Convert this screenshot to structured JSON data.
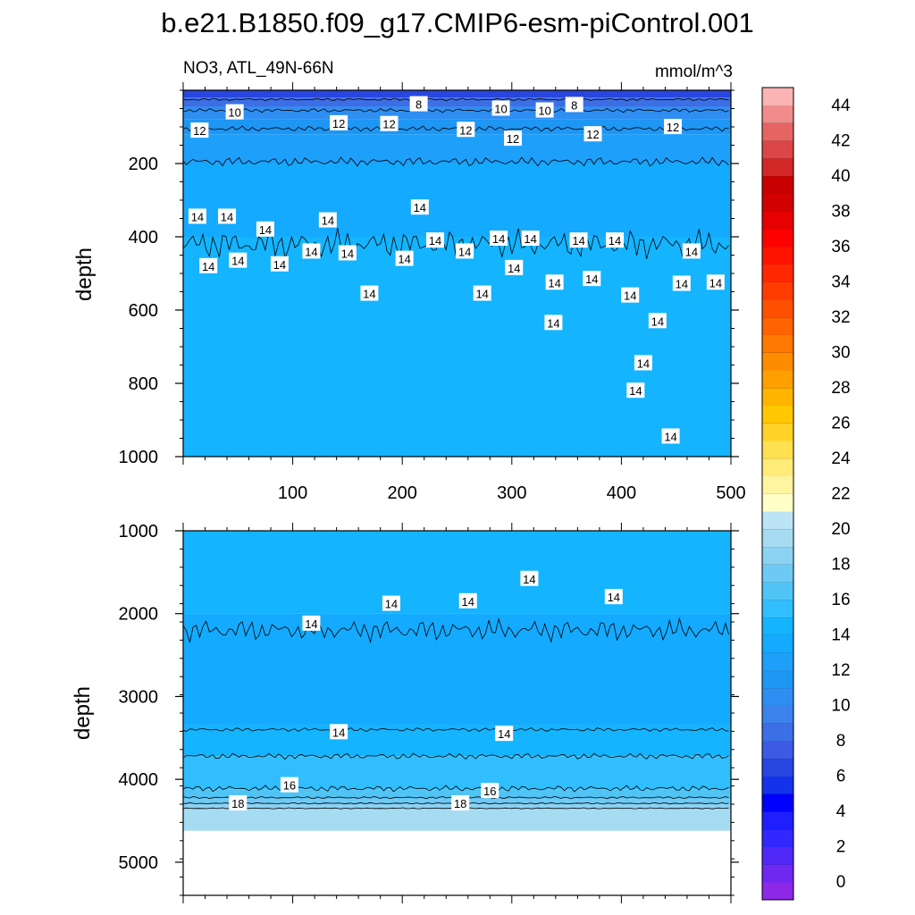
{
  "chart_data": {
    "type": "heatmap",
    "title": "b.e21.B1850.f09_g17.CMIP6-esm-piControl.001",
    "left_string": "NO3, ATL_49N-66N",
    "right_string": "mmol/m^3",
    "x": {
      "ticks": [
        100,
        200,
        300,
        400,
        500
      ],
      "range": [
        0,
        500
      ]
    },
    "panels": [
      {
        "id": "upper",
        "ylabel": "depth",
        "ylim": [
          0,
          1000
        ],
        "yticks": [
          200,
          400,
          600,
          800,
          1000
        ],
        "fill_bands": [
          {
            "from": 0,
            "to": 20,
            "value": 6
          },
          {
            "from": 20,
            "to": 45,
            "value": 8
          },
          {
            "from": 45,
            "to": 80,
            "value": 10
          },
          {
            "from": 80,
            "to": 120,
            "value": 11
          },
          {
            "from": 120,
            "to": 200,
            "value": 12
          },
          {
            "from": 200,
            "to": 400,
            "value": 13
          },
          {
            "from": 400,
            "to": 1000,
            "value": 14
          }
        ],
        "contours": [
          {
            "level": 8,
            "base_depth": 25,
            "amp": 4
          },
          {
            "level": 10,
            "base_depth": 55,
            "amp": 6
          },
          {
            "level": 12,
            "base_depth": 105,
            "amp": 8
          },
          {
            "level": 13,
            "base_depth": 195,
            "amp": 14
          },
          {
            "level": 14,
            "base_depth": 420,
            "amp": 45
          }
        ],
        "labels": [
          {
            "text": "10",
            "x": 47,
            "y": 60
          },
          {
            "text": "8",
            "x": 215,
            "y": 38
          },
          {
            "text": "10",
            "x": 290,
            "y": 50
          },
          {
            "text": "10",
            "x": 330,
            "y": 55
          },
          {
            "text": "8",
            "x": 357,
            "y": 40
          },
          {
            "text": "12",
            "x": 15,
            "y": 110
          },
          {
            "text": "12",
            "x": 142,
            "y": 90
          },
          {
            "text": "12",
            "x": 188,
            "y": 92
          },
          {
            "text": "12",
            "x": 258,
            "y": 108
          },
          {
            "text": "12",
            "x": 301,
            "y": 132
          },
          {
            "text": "12",
            "x": 374,
            "y": 120
          },
          {
            "text": "12",
            "x": 447,
            "y": 100
          },
          {
            "text": "14",
            "x": 13,
            "y": 345
          },
          {
            "text": "14",
            "x": 40,
            "y": 345
          },
          {
            "text": "14",
            "x": 75,
            "y": 380
          },
          {
            "text": "14",
            "x": 132,
            "y": 355
          },
          {
            "text": "14",
            "x": 216,
            "y": 320
          },
          {
            "text": "14",
            "x": 23,
            "y": 480
          },
          {
            "text": "14",
            "x": 50,
            "y": 465
          },
          {
            "text": "14",
            "x": 88,
            "y": 475
          },
          {
            "text": "14",
            "x": 117,
            "y": 440
          },
          {
            "text": "14",
            "x": 150,
            "y": 445
          },
          {
            "text": "14",
            "x": 170,
            "y": 555
          },
          {
            "text": "14",
            "x": 202,
            "y": 460
          },
          {
            "text": "14",
            "x": 230,
            "y": 410
          },
          {
            "text": "14",
            "x": 257,
            "y": 440
          },
          {
            "text": "14",
            "x": 288,
            "y": 405
          },
          {
            "text": "14",
            "x": 317,
            "y": 405
          },
          {
            "text": "14",
            "x": 302,
            "y": 485
          },
          {
            "text": "14",
            "x": 273,
            "y": 555
          },
          {
            "text": "14",
            "x": 339,
            "y": 525
          },
          {
            "text": "14",
            "x": 361,
            "y": 410
          },
          {
            "text": "14",
            "x": 394,
            "y": 410
          },
          {
            "text": "14",
            "x": 373,
            "y": 515
          },
          {
            "text": "14",
            "x": 338,
            "y": 635
          },
          {
            "text": "14",
            "x": 408,
            "y": 560
          },
          {
            "text": "14",
            "x": 433,
            "y": 630
          },
          {
            "text": "14",
            "x": 420,
            "y": 745
          },
          {
            "text": "14",
            "x": 413,
            "y": 820
          },
          {
            "text": "14",
            "x": 464,
            "y": 440
          },
          {
            "text": "14",
            "x": 455,
            "y": 528
          },
          {
            "text": "14",
            "x": 486,
            "y": 525
          },
          {
            "text": "14",
            "x": 445,
            "y": 945
          }
        ]
      },
      {
        "id": "lower",
        "ylabel": "depth",
        "ylim": [
          1000,
          5400
        ],
        "yticks": [
          1000,
          2000,
          3000,
          4000,
          5000
        ],
        "bottom_depth": 4620,
        "fill_bands": [
          {
            "from": 1000,
            "to": 2000,
            "value": 14
          },
          {
            "from": 2000,
            "to": 3350,
            "value": 13
          },
          {
            "from": 3350,
            "to": 3720,
            "value": 14
          },
          {
            "from": 3720,
            "to": 4120,
            "value": 15
          },
          {
            "from": 4120,
            "to": 4230,
            "value": 16
          },
          {
            "from": 4230,
            "to": 4300,
            "value": 17
          },
          {
            "from": 4300,
            "to": 4360,
            "value": 18
          },
          {
            "from": 4360,
            "to": 4620,
            "value": 19
          }
        ],
        "contours": [
          {
            "level": 14,
            "base_depth": 2200,
            "amp": 150
          },
          {
            "level": 14,
            "base_depth": 3400,
            "amp": 25
          },
          {
            "level": 15,
            "base_depth": 3720,
            "amp": 40
          },
          {
            "level": 16,
            "base_depth": 4110,
            "amp": 40
          },
          {
            "level": 17,
            "base_depth": 4220,
            "amp": 15
          },
          {
            "level": 18,
            "base_depth": 4290,
            "amp": 10
          },
          {
            "level": 19,
            "base_depth": 4350,
            "amp": 8
          }
        ],
        "labels": [
          {
            "text": "14",
            "x": 117,
            "y": 2120
          },
          {
            "text": "14",
            "x": 190,
            "y": 1880
          },
          {
            "text": "14",
            "x": 260,
            "y": 1850
          },
          {
            "text": "14",
            "x": 316,
            "y": 1580
          },
          {
            "text": "14",
            "x": 393,
            "y": 1800
          },
          {
            "text": "14",
            "x": 142,
            "y": 3430
          },
          {
            "text": "14",
            "x": 293,
            "y": 3450
          },
          {
            "text": "16",
            "x": 97,
            "y": 4070
          },
          {
            "text": "16",
            "x": 280,
            "y": 4140
          },
          {
            "text": "18",
            "x": 50,
            "y": 4290
          },
          {
            "text": "18",
            "x": 253,
            "y": 4290
          }
        ]
      }
    ],
    "colorbar": {
      "min": -1,
      "step": 1,
      "labels": [
        "0",
        "2",
        "4",
        "6",
        "8",
        "10",
        "12",
        "14",
        "16",
        "18",
        "20",
        "22",
        "24",
        "26",
        "28",
        "30",
        "32",
        "34",
        "36",
        "38",
        "40",
        "42",
        "44"
      ],
      "colors": [
        "#8c28e6",
        "#6e28f0",
        "#5028f8",
        "#3228ff",
        "#1e1eff",
        "#0000ff",
        "#1432ea",
        "#2846e0",
        "#3c5ae4",
        "#3c6ee6",
        "#3c82ec",
        "#2e8ef2",
        "#1e96f4",
        "#1ea0fa",
        "#14aaff",
        "#14b4ff",
        "#30beff",
        "#50c4f4",
        "#6ecaf4",
        "#8cd2f2",
        "#a6dcf2",
        "#bce4f6",
        "#ffffc8",
        "#fff5a0",
        "#ffeb78",
        "#ffe050",
        "#ffd228",
        "#ffc800",
        "#ffb400",
        "#ffa000",
        "#ff8c00",
        "#ff7800",
        "#ff6400",
        "#ff5000",
        "#ff3c00",
        "#ff2800",
        "#ff1400",
        "#ff0000",
        "#e60000",
        "#d20000",
        "#c80000",
        "#d22828",
        "#dc4646",
        "#e66464",
        "#f08c8c",
        "#fab4b4"
      ]
    }
  }
}
